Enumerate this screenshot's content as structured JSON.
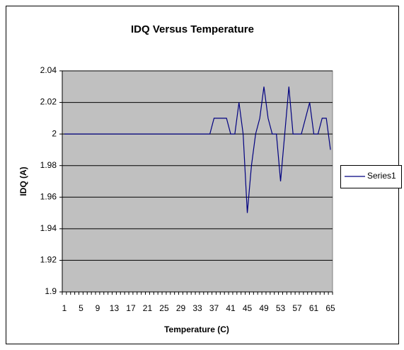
{
  "chart_data": {
    "type": "line",
    "title": "IDQ Versus Temperature",
    "x_label": "Temperature (C)",
    "y_label": "IDQ (A)",
    "categories": [
      1,
      null,
      null,
      null,
      5,
      null,
      null,
      null,
      9,
      null,
      null,
      null,
      13,
      null,
      null,
      null,
      17,
      null,
      null,
      null,
      21,
      null,
      null,
      null,
      25,
      null,
      null,
      null,
      29,
      null,
      null,
      null,
      33,
      null,
      null,
      null,
      37,
      null,
      null,
      null,
      41,
      null,
      null,
      null,
      45,
      null,
      null,
      null,
      49,
      null,
      null,
      null,
      53,
      null,
      null,
      null,
      57,
      null,
      null,
      null,
      61,
      null,
      null,
      null,
      65
    ],
    "series": [
      {
        "name": "Series1",
        "color": "#000080",
        "values": [
          2,
          2,
          2,
          2,
          2,
          2,
          2,
          2,
          2,
          2,
          2,
          2,
          2,
          2,
          2,
          2,
          2,
          2,
          2,
          2,
          2,
          2,
          2,
          2,
          2,
          2,
          2,
          2,
          2,
          2,
          2,
          2,
          2,
          2,
          2,
          2,
          2.01,
          2.01,
          2.01,
          2.01,
          2,
          2,
          2.02,
          2,
          1.95,
          1.98,
          2,
          2.01,
          2.03,
          2.01,
          2,
          2,
          1.97,
          2,
          2.03,
          2,
          2,
          2,
          2.01,
          2.02,
          2,
          2,
          2.01,
          2.01,
          1.99
        ]
      }
    ],
    "ylim": [
      1.9,
      2.04
    ],
    "yticks": [
      1.9,
      1.92,
      1.94,
      1.96,
      1.98,
      2,
      2.02,
      2.04
    ],
    "grid": true,
    "legend": "right",
    "plot_background": "#c0c0c0"
  }
}
